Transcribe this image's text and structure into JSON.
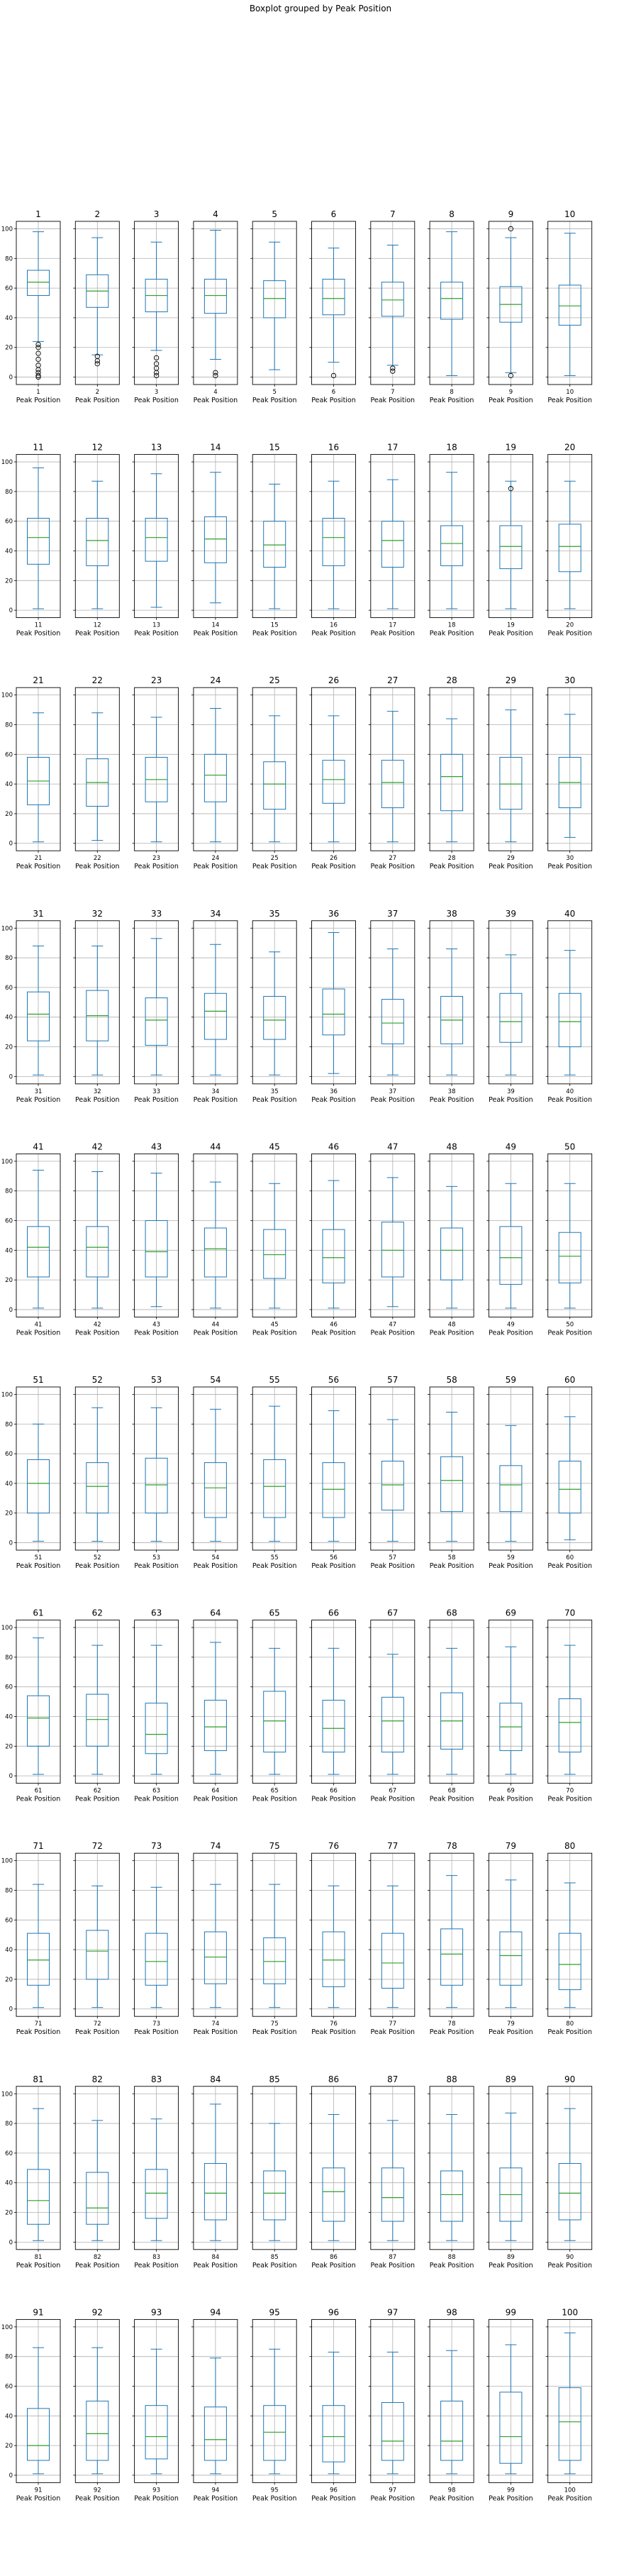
{
  "suptitle": "Boxplot grouped by Peak Position",
  "xlabel": "Peak Position",
  "chart_data": {
    "type": "boxplot",
    "title": "Boxplot grouped by Peak Position",
    "xlabel": "Peak Position",
    "ylim": [
      -5,
      105
    ],
    "yticks": [
      0,
      20,
      40,
      60,
      80,
      100
    ],
    "grid": true,
    "layout": {
      "rows": 10,
      "cols": 10
    },
    "colors": {
      "box": "#1f77b4",
      "median": "#2ca02c",
      "grid": "#b0b0b0",
      "flier": "#000000"
    },
    "panels": [
      {
        "group": "1",
        "whislo": 24,
        "q1": 55,
        "med": 64,
        "q3": 72,
        "whishi": 98,
        "fliers": [
          0,
          1,
          3,
          5,
          8,
          12,
          16,
          20,
          22
        ]
      },
      {
        "group": "2",
        "whislo": 15,
        "q1": 47,
        "med": 58,
        "q3": 69,
        "whishi": 94,
        "fliers": [
          9,
          11,
          14
        ]
      },
      {
        "group": "3",
        "whislo": 18,
        "q1": 44,
        "med": 55,
        "q3": 66,
        "whishi": 91,
        "fliers": [
          1,
          3,
          6,
          9,
          13
        ]
      },
      {
        "group": "4",
        "whislo": 12,
        "q1": 43,
        "med": 55,
        "q3": 66,
        "whishi": 99,
        "fliers": [
          1,
          3
        ]
      },
      {
        "group": "5",
        "whislo": 5,
        "q1": 40,
        "med": 53,
        "q3": 65,
        "whishi": 91,
        "fliers": []
      },
      {
        "group": "6",
        "whislo": 10,
        "q1": 42,
        "med": 53,
        "q3": 66,
        "whishi": 87,
        "fliers": [
          1
        ]
      },
      {
        "group": "7",
        "whislo": 8,
        "q1": 41,
        "med": 52,
        "q3": 64,
        "whishi": 89,
        "fliers": [
          4,
          6
        ]
      },
      {
        "group": "8",
        "whislo": 1,
        "q1": 39,
        "med": 53,
        "q3": 64,
        "whishi": 98,
        "fliers": []
      },
      {
        "group": "9",
        "whislo": 3,
        "q1": 37,
        "med": 49,
        "q3": 61,
        "whishi": 94,
        "fliers": [
          100,
          1
        ]
      },
      {
        "group": "10",
        "whislo": 1,
        "q1": 35,
        "med": 48,
        "q3": 62,
        "whishi": 97,
        "fliers": []
      },
      {
        "group": "11",
        "whislo": 1,
        "q1": 31,
        "med": 49,
        "q3": 62,
        "whishi": 96,
        "fliers": []
      },
      {
        "group": "12",
        "whislo": 1,
        "q1": 30,
        "med": 47,
        "q3": 62,
        "whishi": 87,
        "fliers": []
      },
      {
        "group": "13",
        "whislo": 2,
        "q1": 33,
        "med": 49,
        "q3": 62,
        "whishi": 92,
        "fliers": []
      },
      {
        "group": "14",
        "whislo": 5,
        "q1": 32,
        "med": 48,
        "q3": 63,
        "whishi": 93,
        "fliers": []
      },
      {
        "group": "15",
        "whislo": 1,
        "q1": 29,
        "med": 44,
        "q3": 60,
        "whishi": 85,
        "fliers": []
      },
      {
        "group": "16",
        "whislo": 1,
        "q1": 30,
        "med": 49,
        "q3": 62,
        "whishi": 87,
        "fliers": []
      },
      {
        "group": "17",
        "whislo": 1,
        "q1": 29,
        "med": 47,
        "q3": 60,
        "whishi": 88,
        "fliers": []
      },
      {
        "group": "18",
        "whislo": 1,
        "q1": 30,
        "med": 45,
        "q3": 57,
        "whishi": 93,
        "fliers": []
      },
      {
        "group": "19",
        "whislo": 1,
        "q1": 28,
        "med": 43,
        "q3": 57,
        "whishi": 87,
        "fliers": [
          82
        ]
      },
      {
        "group": "20",
        "whislo": 1,
        "q1": 26,
        "med": 43,
        "q3": 58,
        "whishi": 87,
        "fliers": []
      },
      {
        "group": "21",
        "whislo": 1,
        "q1": 26,
        "med": 42,
        "q3": 58,
        "whishi": 88,
        "fliers": []
      },
      {
        "group": "22",
        "whislo": 2,
        "q1": 25,
        "med": 41,
        "q3": 57,
        "whishi": 88,
        "fliers": []
      },
      {
        "group": "23",
        "whislo": 1,
        "q1": 28,
        "med": 43,
        "q3": 58,
        "whishi": 85,
        "fliers": []
      },
      {
        "group": "24",
        "whislo": 1,
        "q1": 28,
        "med": 46,
        "q3": 60,
        "whishi": 91,
        "fliers": []
      },
      {
        "group": "25",
        "whislo": 1,
        "q1": 23,
        "med": 40,
        "q3": 55,
        "whishi": 86,
        "fliers": []
      },
      {
        "group": "26",
        "whislo": 1,
        "q1": 27,
        "med": 43,
        "q3": 56,
        "whishi": 86,
        "fliers": []
      },
      {
        "group": "27",
        "whislo": 1,
        "q1": 24,
        "med": 41,
        "q3": 56,
        "whishi": 89,
        "fliers": []
      },
      {
        "group": "28",
        "whislo": 1,
        "q1": 22,
        "med": 45,
        "q3": 60,
        "whishi": 84,
        "fliers": []
      },
      {
        "group": "29",
        "whislo": 1,
        "q1": 23,
        "med": 40,
        "q3": 58,
        "whishi": 90,
        "fliers": []
      },
      {
        "group": "30",
        "whislo": 4,
        "q1": 24,
        "med": 41,
        "q3": 58,
        "whishi": 87,
        "fliers": []
      },
      {
        "group": "31",
        "whislo": 1,
        "q1": 24,
        "med": 42,
        "q3": 57,
        "whishi": 88,
        "fliers": []
      },
      {
        "group": "32",
        "whislo": 1,
        "q1": 24,
        "med": 41,
        "q3": 58,
        "whishi": 88,
        "fliers": []
      },
      {
        "group": "33",
        "whislo": 1,
        "q1": 21,
        "med": 38,
        "q3": 53,
        "whishi": 93,
        "fliers": []
      },
      {
        "group": "34",
        "whislo": 1,
        "q1": 25,
        "med": 44,
        "q3": 56,
        "whishi": 89,
        "fliers": []
      },
      {
        "group": "35",
        "whislo": 1,
        "q1": 25,
        "med": 38,
        "q3": 54,
        "whishi": 84,
        "fliers": []
      },
      {
        "group": "36",
        "whislo": 2,
        "q1": 28,
        "med": 42,
        "q3": 59,
        "whishi": 97,
        "fliers": []
      },
      {
        "group": "37",
        "whislo": 1,
        "q1": 22,
        "med": 36,
        "q3": 52,
        "whishi": 86,
        "fliers": []
      },
      {
        "group": "38",
        "whislo": 1,
        "q1": 22,
        "med": 38,
        "q3": 54,
        "whishi": 86,
        "fliers": []
      },
      {
        "group": "39",
        "whislo": 1,
        "q1": 23,
        "med": 37,
        "q3": 56,
        "whishi": 82,
        "fliers": []
      },
      {
        "group": "40",
        "whislo": 1,
        "q1": 20,
        "med": 37,
        "q3": 56,
        "whishi": 85,
        "fliers": []
      },
      {
        "group": "41",
        "whislo": 1,
        "q1": 22,
        "med": 42,
        "q3": 56,
        "whishi": 94,
        "fliers": []
      },
      {
        "group": "42",
        "whislo": 1,
        "q1": 22,
        "med": 42,
        "q3": 56,
        "whishi": 93,
        "fliers": []
      },
      {
        "group": "43",
        "whislo": 2,
        "q1": 22,
        "med": 39,
        "q3": 60,
        "whishi": 92,
        "fliers": []
      },
      {
        "group": "44",
        "whislo": 1,
        "q1": 22,
        "med": 41,
        "q3": 55,
        "whishi": 86,
        "fliers": []
      },
      {
        "group": "45",
        "whislo": 1,
        "q1": 21,
        "med": 37,
        "q3": 54,
        "whishi": 85,
        "fliers": []
      },
      {
        "group": "46",
        "whislo": 1,
        "q1": 18,
        "med": 35,
        "q3": 54,
        "whishi": 87,
        "fliers": []
      },
      {
        "group": "47",
        "whislo": 2,
        "q1": 22,
        "med": 40,
        "q3": 59,
        "whishi": 89,
        "fliers": []
      },
      {
        "group": "48",
        "whislo": 1,
        "q1": 20,
        "med": 40,
        "q3": 55,
        "whishi": 83,
        "fliers": []
      },
      {
        "group": "49",
        "whislo": 1,
        "q1": 17,
        "med": 35,
        "q3": 56,
        "whishi": 85,
        "fliers": []
      },
      {
        "group": "50",
        "whislo": 1,
        "q1": 18,
        "med": 36,
        "q3": 52,
        "whishi": 85,
        "fliers": []
      },
      {
        "group": "51",
        "whislo": 1,
        "q1": 20,
        "med": 40,
        "q3": 56,
        "whishi": 80,
        "fliers": []
      },
      {
        "group": "52",
        "whislo": 1,
        "q1": 20,
        "med": 38,
        "q3": 54,
        "whishi": 91,
        "fliers": []
      },
      {
        "group": "53",
        "whislo": 1,
        "q1": 20,
        "med": 39,
        "q3": 57,
        "whishi": 91,
        "fliers": []
      },
      {
        "group": "54",
        "whislo": 1,
        "q1": 17,
        "med": 37,
        "q3": 54,
        "whishi": 90,
        "fliers": []
      },
      {
        "group": "55",
        "whislo": 1,
        "q1": 17,
        "med": 38,
        "q3": 56,
        "whishi": 92,
        "fliers": []
      },
      {
        "group": "56",
        "whislo": 1,
        "q1": 17,
        "med": 36,
        "q3": 54,
        "whishi": 89,
        "fliers": []
      },
      {
        "group": "57",
        "whislo": 1,
        "q1": 22,
        "med": 39,
        "q3": 55,
        "whishi": 83,
        "fliers": []
      },
      {
        "group": "58",
        "whislo": 1,
        "q1": 21,
        "med": 42,
        "q3": 58,
        "whishi": 88,
        "fliers": []
      },
      {
        "group": "59",
        "whislo": 1,
        "q1": 21,
        "med": 39,
        "q3": 52,
        "whishi": 79,
        "fliers": []
      },
      {
        "group": "60",
        "whislo": 2,
        "q1": 20,
        "med": 36,
        "q3": 55,
        "whishi": 85,
        "fliers": []
      },
      {
        "group": "61",
        "whislo": 1,
        "q1": 20,
        "med": 39,
        "q3": 54,
        "whishi": 93,
        "fliers": []
      },
      {
        "group": "62",
        "whislo": 1,
        "q1": 20,
        "med": 38,
        "q3": 55,
        "whishi": 88,
        "fliers": []
      },
      {
        "group": "63",
        "whislo": 1,
        "q1": 15,
        "med": 28,
        "q3": 49,
        "whishi": 88,
        "fliers": []
      },
      {
        "group": "64",
        "whislo": 1,
        "q1": 17,
        "med": 33,
        "q3": 51,
        "whishi": 90,
        "fliers": []
      },
      {
        "group": "65",
        "whislo": 1,
        "q1": 16,
        "med": 37,
        "q3": 57,
        "whishi": 86,
        "fliers": []
      },
      {
        "group": "66",
        "whislo": 1,
        "q1": 16,
        "med": 32,
        "q3": 51,
        "whishi": 86,
        "fliers": []
      },
      {
        "group": "67",
        "whislo": 1,
        "q1": 16,
        "med": 37,
        "q3": 53,
        "whishi": 82,
        "fliers": []
      },
      {
        "group": "68",
        "whislo": 1,
        "q1": 18,
        "med": 37,
        "q3": 56,
        "whishi": 86,
        "fliers": []
      },
      {
        "group": "69",
        "whislo": 1,
        "q1": 17,
        "med": 33,
        "q3": 49,
        "whishi": 87,
        "fliers": []
      },
      {
        "group": "70",
        "whislo": 1,
        "q1": 16,
        "med": 36,
        "q3": 52,
        "whishi": 88,
        "fliers": []
      },
      {
        "group": "71",
        "whislo": 1,
        "q1": 16,
        "med": 33,
        "q3": 51,
        "whishi": 84,
        "fliers": []
      },
      {
        "group": "72",
        "whislo": 1,
        "q1": 20,
        "med": 39,
        "q3": 53,
        "whishi": 83,
        "fliers": []
      },
      {
        "group": "73",
        "whislo": 1,
        "q1": 16,
        "med": 32,
        "q3": 51,
        "whishi": 82,
        "fliers": []
      },
      {
        "group": "74",
        "whislo": 1,
        "q1": 17,
        "med": 35,
        "q3": 52,
        "whishi": 84,
        "fliers": []
      },
      {
        "group": "75",
        "whislo": 1,
        "q1": 17,
        "med": 32,
        "q3": 48,
        "whishi": 84,
        "fliers": []
      },
      {
        "group": "76",
        "whislo": 1,
        "q1": 15,
        "med": 33,
        "q3": 52,
        "whishi": 83,
        "fliers": []
      },
      {
        "group": "77",
        "whislo": 1,
        "q1": 14,
        "med": 31,
        "q3": 51,
        "whishi": 83,
        "fliers": []
      },
      {
        "group": "78",
        "whislo": 1,
        "q1": 16,
        "med": 37,
        "q3": 54,
        "whishi": 90,
        "fliers": []
      },
      {
        "group": "79",
        "whislo": 1,
        "q1": 16,
        "med": 36,
        "q3": 52,
        "whishi": 87,
        "fliers": []
      },
      {
        "group": "80",
        "whislo": 1,
        "q1": 13,
        "med": 30,
        "q3": 51,
        "whishi": 85,
        "fliers": []
      },
      {
        "group": "81",
        "whislo": 1,
        "q1": 12,
        "med": 28,
        "q3": 49,
        "whishi": 90,
        "fliers": []
      },
      {
        "group": "82",
        "whislo": 1,
        "q1": 12,
        "med": 23,
        "q3": 47,
        "whishi": 82,
        "fliers": []
      },
      {
        "group": "83",
        "whislo": 1,
        "q1": 16,
        "med": 33,
        "q3": 49,
        "whishi": 83,
        "fliers": []
      },
      {
        "group": "84",
        "whislo": 1,
        "q1": 15,
        "med": 33,
        "q3": 53,
        "whishi": 93,
        "fliers": []
      },
      {
        "group": "85",
        "whislo": 1,
        "q1": 15,
        "med": 33,
        "q3": 48,
        "whishi": 80,
        "fliers": []
      },
      {
        "group": "86",
        "whislo": 1,
        "q1": 14,
        "med": 34,
        "q3": 50,
        "whishi": 86,
        "fliers": []
      },
      {
        "group": "87",
        "whislo": 1,
        "q1": 14,
        "med": 30,
        "q3": 50,
        "whishi": 82,
        "fliers": []
      },
      {
        "group": "88",
        "whislo": 1,
        "q1": 14,
        "med": 32,
        "q3": 48,
        "whishi": 86,
        "fliers": []
      },
      {
        "group": "89",
        "whislo": 1,
        "q1": 14,
        "med": 32,
        "q3": 50,
        "whishi": 87,
        "fliers": []
      },
      {
        "group": "90",
        "whislo": 1,
        "q1": 15,
        "med": 33,
        "q3": 53,
        "whishi": 90,
        "fliers": []
      },
      {
        "group": "91",
        "whislo": 1,
        "q1": 10,
        "med": 20,
        "q3": 45,
        "whishi": 86,
        "fliers": []
      },
      {
        "group": "92",
        "whislo": 1,
        "q1": 10,
        "med": 28,
        "q3": 50,
        "whishi": 86,
        "fliers": []
      },
      {
        "group": "93",
        "whislo": 1,
        "q1": 11,
        "med": 26,
        "q3": 47,
        "whishi": 85,
        "fliers": []
      },
      {
        "group": "94",
        "whislo": 1,
        "q1": 10,
        "med": 24,
        "q3": 46,
        "whishi": 79,
        "fliers": []
      },
      {
        "group": "95",
        "whislo": 1,
        "q1": 10,
        "med": 29,
        "q3": 47,
        "whishi": 85,
        "fliers": []
      },
      {
        "group": "96",
        "whislo": 1,
        "q1": 9,
        "med": 26,
        "q3": 47,
        "whishi": 83,
        "fliers": []
      },
      {
        "group": "97",
        "whislo": 1,
        "q1": 10,
        "med": 23,
        "q3": 49,
        "whishi": 83,
        "fliers": []
      },
      {
        "group": "98",
        "whislo": 1,
        "q1": 10,
        "med": 23,
        "q3": 50,
        "whishi": 84,
        "fliers": []
      },
      {
        "group": "99",
        "whislo": 1,
        "q1": 8,
        "med": 26,
        "q3": 56,
        "whishi": 88,
        "fliers": []
      },
      {
        "group": "100",
        "whislo": 1,
        "q1": 10,
        "med": 36,
        "q3": 59,
        "whishi": 96,
        "fliers": []
      }
    ]
  }
}
